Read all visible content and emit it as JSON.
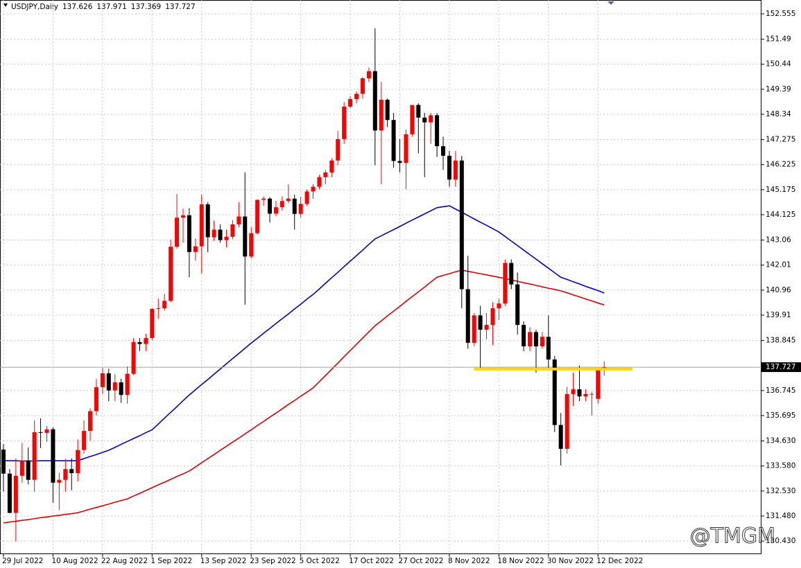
{
  "chart_data": {
    "type": "candlestick",
    "header": {
      "symbol": "USDJPY,Daily",
      "values": [
        137.626,
        137.971,
        137.369,
        137.727
      ]
    },
    "watermark": "@TMGM",
    "categories": [
      "29 Jul 2022",
      null,
      null,
      null,
      null,
      null,
      null,
      null,
      "10 Aug 2022",
      null,
      null,
      null,
      null,
      null,
      null,
      null,
      "22 Aug 2022",
      null,
      null,
      null,
      null,
      null,
      null,
      null,
      "1 Sep 2022",
      null,
      null,
      null,
      null,
      null,
      null,
      null,
      "13 Sep 2022",
      null,
      null,
      null,
      null,
      null,
      null,
      null,
      "23 Sep 2022",
      null,
      null,
      null,
      null,
      null,
      null,
      null,
      "5 Oct 2022",
      null,
      null,
      null,
      null,
      null,
      null,
      null,
      "17 Oct 2022",
      null,
      null,
      null,
      null,
      null,
      null,
      null,
      "27 Oct 2022",
      null,
      null,
      null,
      null,
      null,
      null,
      null,
      "8 Nov 2022",
      null,
      null,
      null,
      null,
      null,
      null,
      null,
      "18 Nov 2022",
      null,
      null,
      null,
      null,
      null,
      null,
      null,
      "30 Nov 2022",
      null,
      null,
      null,
      null,
      null,
      null,
      null,
      "12 Dec 2022",
      null
    ],
    "open": [
      134.27,
      133.26,
      131.61,
      133.17,
      133.81,
      133.0,
      135.0,
      134.97,
      135.12,
      132.88,
      133.0,
      133.45,
      133.28,
      134.25,
      135.05,
      135.88,
      136.89,
      137.47,
      136.75,
      137.09,
      136.56,
      137.45,
      138.78,
      138.7,
      138.95,
      140.17,
      140.2,
      140.51,
      142.78,
      144.0,
      144.1,
      142.56,
      142.8,
      144.56,
      143.18,
      143.5,
      143.06,
      143.2,
      143.72,
      144.05,
      142.37,
      143.35,
      144.75,
      144.8,
      144.17,
      144.44,
      144.7,
      144.8,
      144.16,
      144.58,
      145.1,
      145.3,
      145.7,
      145.9,
      146.4,
      147.3,
      148.66,
      148.98,
      149.2,
      149.85,
      150.15,
      147.66,
      148.95,
      148.1,
      146.38,
      146.3,
      147.5,
      148.73,
      148.2,
      148.0,
      148.3,
      147.0,
      146.6,
      145.6,
      146.4,
      141.0,
      138.75,
      139.9,
      139.3,
      139.5,
      140.2,
      140.4,
      142.1,
      141.2,
      139.5,
      138.6,
      139.2,
      138.6,
      139.0,
      138.05,
      135.3,
      134.3,
      136.6,
      136.8,
      136.5,
      136.6,
      136.4,
      137.626
    ],
    "high": [
      134.5,
      133.45,
      133.9,
      134.55,
      134.36,
      135.5,
      135.58,
      135.26,
      135.2,
      133.3,
      133.88,
      133.9,
      134.7,
      135.49,
      136.0,
      137.23,
      137.7,
      137.66,
      137.43,
      137.24,
      137.75,
      138.94,
      138.95,
      139.13,
      140.21,
      140.6,
      140.81,
      143.08,
      144.99,
      144.38,
      144.4,
      143.12,
      144.97,
      144.65,
      143.88,
      143.72,
      143.5,
      143.9,
      144.65,
      145.9,
      143.6,
      144.77,
      144.89,
      144.86,
      144.7,
      144.9,
      145.4,
      144.97,
      144.88,
      145.19,
      145.4,
      145.8,
      146.0,
      146.5,
      147.64,
      148.86,
      149.1,
      149.3,
      149.9,
      150.3,
      151.94,
      149.7,
      149.0,
      148.4,
      147.3,
      147.7,
      148.7,
      148.8,
      148.4,
      148.4,
      148.39,
      147.4,
      146.8,
      146.8,
      146.59,
      142.4,
      140.0,
      140.3,
      140.0,
      140.45,
      140.6,
      142.25,
      142.25,
      141.7,
      139.65,
      139.4,
      139.3,
      139.2,
      139.9,
      138.2,
      135.8,
      136.9,
      137.5,
      137.8,
      136.8,
      136.7,
      137.7,
      137.971
    ],
    "low": [
      132.51,
      131.6,
      130.41,
      132.88,
      132.81,
      132.5,
      134.33,
      134.6,
      132.04,
      131.73,
      132.5,
      132.56,
      132.93,
      134.1,
      134.64,
      135.7,
      136.6,
      136.3,
      136.3,
      136.23,
      136.2,
      137.4,
      138.4,
      138.4,
      138.85,
      139.75,
      140.1,
      140.45,
      142.7,
      142.95,
      141.5,
      142.2,
      141.66,
      142.55,
      143.03,
      142.95,
      142.76,
      143.1,
      143.6,
      140.35,
      142.3,
      143.3,
      144.5,
      143.8,
      144.06,
      144.3,
      144.6,
      143.5,
      144.0,
      144.5,
      144.8,
      145.2,
      145.4,
      145.7,
      146.2,
      147.1,
      148.6,
      148.8,
      149.0,
      149.7,
      146.2,
      145.4,
      147.8,
      146.1,
      145.9,
      145.2,
      147.4,
      146.7,
      145.7,
      147.1,
      146.55,
      146.0,
      145.3,
      145.3,
      140.2,
      138.5,
      138.6,
      137.7,
      138.9,
      138.65,
      139.7,
      140.3,
      141.0,
      139.1,
      138.4,
      138.4,
      137.5,
      138.5,
      137.7,
      135.0,
      133.6,
      134.1,
      136.1,
      136.3,
      136.3,
      135.7,
      136.2,
      137.369
    ],
    "close": [
      133.26,
      131.61,
      133.17,
      133.81,
      133.0,
      135.0,
      134.97,
      135.12,
      132.88,
      133.0,
      133.45,
      133.28,
      134.25,
      135.05,
      135.88,
      136.89,
      137.47,
      136.75,
      137.09,
      136.56,
      137.45,
      138.78,
      138.7,
      138.95,
      140.17,
      140.2,
      140.51,
      142.78,
      144.0,
      144.1,
      142.56,
      142.8,
      144.56,
      143.18,
      143.5,
      143.06,
      143.2,
      143.72,
      144.05,
      142.37,
      143.35,
      144.75,
      144.8,
      144.17,
      144.44,
      144.7,
      144.8,
      144.16,
      144.58,
      145.1,
      145.3,
      145.7,
      145.9,
      146.4,
      147.3,
      148.66,
      148.98,
      149.2,
      149.85,
      150.15,
      147.66,
      148.95,
      148.1,
      146.38,
      146.3,
      147.5,
      148.73,
      148.2,
      148.0,
      148.3,
      147.0,
      146.6,
      145.6,
      146.4,
      141.0,
      138.75,
      139.9,
      139.3,
      139.5,
      140.2,
      140.4,
      142.1,
      141.2,
      139.5,
      138.6,
      139.2,
      138.6,
      139.0,
      138.05,
      135.3,
      134.3,
      136.6,
      136.8,
      136.5,
      136.6,
      136.6,
      137.6,
      137.727
    ],
    "up_color": "#ff0000",
    "down_color": "#000000",
    "moving_averages": [
      {
        "color": "#0000cc",
        "values": [
          133.81,
          133.8,
          133.8,
          133.79,
          133.79,
          133.79,
          133.8,
          133.8,
          133.8,
          133.8,
          133.8,
          133.8,
          133.8,
          133.89,
          133.98,
          134.06,
          134.15,
          134.24,
          134.36,
          134.49,
          134.61,
          134.73,
          134.85,
          134.98,
          135.1,
          135.34,
          135.59,
          135.83,
          136.07,
          136.32,
          136.56,
          136.78,
          137.0,
          137.21,
          137.43,
          137.65,
          137.87,
          138.09,
          138.3,
          138.52,
          138.74,
          138.94,
          139.15,
          139.35,
          139.56,
          139.76,
          139.96,
          140.17,
          140.37,
          140.58,
          140.78,
          141.01,
          141.25,
          141.48,
          141.71,
          141.95,
          142.18,
          142.41,
          142.64,
          142.88,
          143.11,
          143.24,
          143.37,
          143.5,
          143.63,
          143.77,
          143.9,
          144.03,
          144.16,
          144.29,
          144.42,
          144.46,
          144.5,
          144.36,
          144.23,
          144.09,
          143.95,
          143.81,
          143.68,
          143.54,
          143.4,
          143.21,
          143.02,
          142.83,
          142.64,
          142.45,
          142.26,
          142.07,
          141.88,
          141.69,
          141.5,
          141.41,
          141.31,
          141.22,
          141.12,
          141.03,
          140.94,
          140.84
        ]
      },
      {
        "color": "#e00000",
        "values": [
          131.19,
          131.23,
          131.26,
          131.3,
          131.33,
          131.37,
          131.41,
          131.44,
          131.48,
          131.51,
          131.55,
          131.58,
          131.62,
          131.69,
          131.77,
          131.84,
          131.91,
          131.98,
          132.06,
          132.13,
          132.2,
          132.32,
          132.43,
          132.55,
          132.67,
          132.79,
          132.9,
          133.02,
          133.14,
          133.25,
          133.37,
          133.54,
          133.72,
          133.89,
          134.06,
          134.24,
          134.41,
          134.58,
          134.75,
          134.93,
          135.1,
          135.28,
          135.45,
          135.63,
          135.8,
          135.98,
          136.16,
          136.33,
          136.51,
          136.68,
          136.86,
          137.12,
          137.38,
          137.64,
          137.9,
          138.17,
          138.43,
          138.69,
          138.95,
          139.21,
          139.47,
          139.67,
          139.88,
          140.08,
          140.28,
          140.49,
          140.69,
          140.89,
          141.09,
          141.3,
          141.5,
          141.58,
          141.65,
          141.73,
          141.8,
          141.75,
          141.7,
          141.65,
          141.6,
          141.55,
          141.5,
          141.44,
          141.39,
          141.33,
          141.27,
          141.22,
          141.16,
          141.1,
          141.04,
          140.99,
          140.93,
          140.85,
          140.76,
          140.68,
          140.59,
          140.51,
          140.42,
          140.34
        ]
      }
    ],
    "hline": {
      "value": 137.65,
      "color": "#ffd700"
    },
    "last_price": 137.727,
    "ylim": [
      129.88,
      153.136
    ],
    "yticks": [
      {
        "value": 130.43,
        "label": "130.430"
      },
      {
        "value": 131.48,
        "label": "131.480"
      },
      {
        "value": 132.53,
        "label": "132.530"
      },
      {
        "value": 133.58,
        "label": "133.580"
      },
      {
        "value": 134.63,
        "label": "134.630"
      },
      135.695,
      136.745,
      138.845,
      139.91,
      140.96,
      142.01,
      143.06,
      144.125,
      145.175,
      146.225,
      147.275,
      148.34,
      149.39,
      150.44,
      151.49,
      152.555
    ],
    "grid": true
  }
}
